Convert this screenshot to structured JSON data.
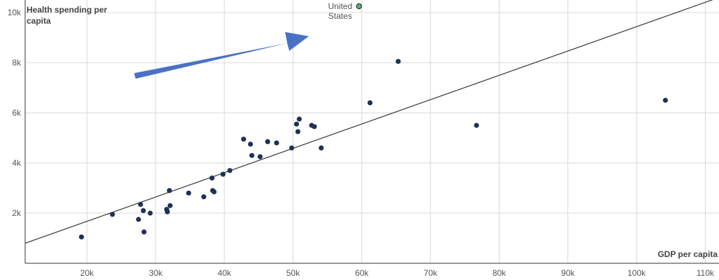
{
  "chart_data": {
    "type": "scatter",
    "ylabel_lines": [
      "Health spending per",
      "capita"
    ],
    "xlabel": "GDP per capita",
    "xlim": [
      11000,
      112000
    ],
    "ylim": [
      0,
      10500
    ],
    "x_ticks": [
      {
        "value": 20000,
        "label": "20k"
      },
      {
        "value": 30000,
        "label": "30k"
      },
      {
        "value": 40000,
        "label": "40k"
      },
      {
        "value": 50000,
        "label": "50k"
      },
      {
        "value": 60000,
        "label": "60k"
      },
      {
        "value": 70000,
        "label": "70k"
      },
      {
        "value": 80000,
        "label": "80k"
      },
      {
        "value": 90000,
        "label": "90k"
      },
      {
        "value": 100000,
        "label": "100k"
      },
      {
        "value": 110000,
        "label": "110k"
      }
    ],
    "y_ticks": [
      {
        "value": 2000,
        "label": "2k"
      },
      {
        "value": 4000,
        "label": "4k"
      },
      {
        "value": 6000,
        "label": "6k"
      },
      {
        "value": 8000,
        "label": "8k"
      },
      {
        "value": 10000,
        "label": "10k"
      }
    ],
    "grid": true,
    "trend_line": [
      [
        11000,
        800
      ],
      [
        112000,
        10600
      ]
    ],
    "points": [
      [
        19200,
        1050
      ],
      [
        23700,
        1950
      ],
      [
        27500,
        1750
      ],
      [
        27800,
        2350
      ],
      [
        28200,
        2100
      ],
      [
        28300,
        1250
      ],
      [
        29200,
        2000
      ],
      [
        31600,
        2150
      ],
      [
        31700,
        2050
      ],
      [
        32000,
        2900
      ],
      [
        32100,
        2300
      ],
      [
        34800,
        2800
      ],
      [
        37000,
        2650
      ],
      [
        38200,
        3400
      ],
      [
        38300,
        2900
      ],
      [
        38500,
        2850
      ],
      [
        39800,
        3550
      ],
      [
        40800,
        3700
      ],
      [
        42800,
        4950
      ],
      [
        43800,
        4750
      ],
      [
        44000,
        4300
      ],
      [
        45200,
        4250
      ],
      [
        46300,
        4850
      ],
      [
        47600,
        4800
      ],
      [
        49800,
        4600
      ],
      [
        50500,
        5550
      ],
      [
        50700,
        5250
      ],
      [
        50900,
        5750
      ],
      [
        52700,
        5500
      ],
      [
        53100,
        5450
      ],
      [
        54100,
        4600
      ],
      [
        61200,
        6400
      ],
      [
        65300,
        8050
      ],
      [
        76700,
        5500
      ],
      [
        104200,
        6500
      ]
    ],
    "highlighted_points": [
      {
        "x": 59600,
        "y": 10250,
        "label_lines": [
          "United",
          "States"
        ],
        "color": "#5cb85c"
      }
    ],
    "point_color": "#1f3159",
    "arrow_color": "#4a72c4"
  }
}
